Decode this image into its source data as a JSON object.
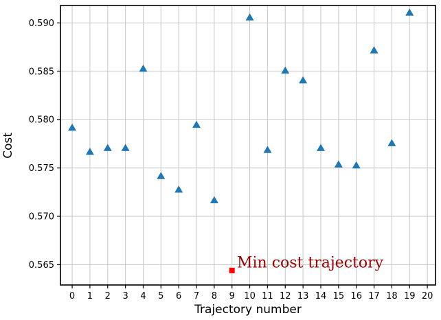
{
  "chart_data": {
    "type": "scatter",
    "title": "",
    "xlabel": "Trajectory number",
    "ylabel": "Cost",
    "grid": true,
    "xlim": [
      -0.66,
      20.46
    ],
    "ylim": [
      0.5629,
      0.5918
    ],
    "xticks": {
      "values": [
        0,
        1,
        2,
        3,
        4,
        5,
        6,
        7,
        8,
        9,
        10,
        11,
        12,
        13,
        14,
        15,
        16,
        17,
        18,
        19,
        20
      ],
      "labels": [
        "0",
        "1",
        "2",
        "3",
        "4",
        "5",
        "6",
        "7",
        "8",
        "9",
        "10",
        "11",
        "12",
        "13",
        "14",
        "15",
        "16",
        "17",
        "18",
        "19",
        "20"
      ]
    },
    "yticks": {
      "values": [
        0.565,
        0.57,
        0.575,
        0.58,
        0.585,
        0.59
      ],
      "labels": [
        "0.565",
        "0.570",
        "0.575",
        "0.580",
        "0.585",
        "0.590"
      ]
    },
    "series": [
      {
        "name": "trajectory-costs",
        "marker": "triangle",
        "color": "#1f77b4",
        "x": [
          0,
          1,
          2,
          3,
          4,
          5,
          6,
          7,
          8,
          10,
          11,
          12,
          13,
          14,
          15,
          16,
          17,
          18,
          19
        ],
        "y": [
          0.5791,
          0.5766,
          0.577,
          0.577,
          0.5852,
          0.5741,
          0.5727,
          0.5794,
          0.5716,
          0.5905,
          0.5768,
          0.585,
          0.584,
          0.577,
          0.5753,
          0.5752,
          0.5871,
          0.5775,
          0.591
        ]
      },
      {
        "name": "min-cost-trajectory",
        "marker": "square",
        "color": "#ff0000",
        "x": [
          9
        ],
        "y": [
          0.5644
        ]
      }
    ],
    "annotation": {
      "text": "Min cost trajectory",
      "x": 9.28,
      "y": 0.5647,
      "color": "#990000"
    }
  }
}
